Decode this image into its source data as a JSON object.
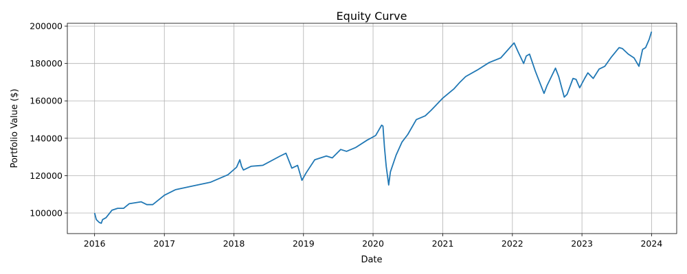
{
  "chart_data": {
    "type": "line",
    "title": "Equity Curve",
    "xlabel": "Date",
    "ylabel": "Portfolio Value ($)",
    "xlim": [
      "2015-08-11",
      "2024-05-12"
    ],
    "ylim": [
      89000,
      201500
    ],
    "x_ticks": [
      "2016",
      "2017",
      "2018",
      "2019",
      "2020",
      "2021",
      "2022",
      "2023",
      "2024"
    ],
    "y_ticks": [
      100000,
      120000,
      140000,
      160000,
      180000,
      200000
    ],
    "y_tick_labels": [
      "100000",
      "120000",
      "140000",
      "160000",
      "180000",
      "200000"
    ],
    "grid": true,
    "color": "#1f77b4",
    "series": [
      {
        "x": [
          "2016-01-01",
          "2016-01-10",
          "2016-01-25",
          "2016-02-05",
          "2016-02-12",
          "2016-03-01",
          "2016-04-01",
          "2016-05-01",
          "2016-06-01",
          "2016-07-01",
          "2016-09-01",
          "2016-10-01",
          "2016-11-01",
          "2017-01-01",
          "2017-03-01",
          "2017-06-01",
          "2017-09-01",
          "2017-12-01",
          "2018-01-15",
          "2018-02-01",
          "2018-02-10",
          "2018-02-20",
          "2018-04-01",
          "2018-06-01",
          "2018-09-01",
          "2018-10-01",
          "2018-11-01",
          "2018-12-01",
          "2018-12-24",
          "2019-01-15",
          "2019-03-01",
          "2019-05-01",
          "2019-06-01",
          "2019-07-15",
          "2019-08-15",
          "2019-10-01",
          "2019-12-01",
          "2020-01-15",
          "2020-02-15",
          "2020-02-22",
          "2020-03-01",
          "2020-03-10",
          "2020-03-23",
          "2020-04-01",
          "2020-05-01",
          "2020-06-01",
          "2020-07-01",
          "2020-08-15",
          "2020-10-01",
          "2020-11-01",
          "2021-01-01",
          "2021-03-01",
          "2021-04-01",
          "2021-05-01",
          "2021-07-01",
          "2021-09-01",
          "2021-11-01",
          "2022-01-01",
          "2022-01-10",
          "2022-02-01",
          "2022-03-01",
          "2022-03-15",
          "2022-04-01",
          "2022-05-01",
          "2022-05-20",
          "2022-06-16",
          "2022-07-01",
          "2022-08-15",
          "2022-09-01",
          "2022-09-30",
          "2022-10-15",
          "2022-11-15",
          "2022-12-01",
          "2022-12-20",
          "2023-01-15",
          "2023-02-01",
          "2023-03-01",
          "2023-04-01",
          "2023-05-01",
          "2023-06-01",
          "2023-07-15",
          "2023-08-01",
          "2023-09-01",
          "2023-10-01",
          "2023-10-27",
          "2023-11-15",
          "2023-12-01",
          "2023-12-20",
          "2024-01-01"
        ],
        "values": [
          100000,
          96500,
          95000,
          94500,
          96500,
          97500,
          101500,
          102500,
          102500,
          105000,
          106000,
          104500,
          104500,
          109500,
          112500,
          114500,
          116500,
          120500,
          124500,
          128500,
          125000,
          123000,
          125000,
          125500,
          130500,
          132000,
          124000,
          125500,
          117500,
          121500,
          128500,
          130500,
          129500,
          134000,
          133000,
          135000,
          139000,
          141500,
          147000,
          146500,
          135000,
          125000,
          115000,
          122000,
          131000,
          138000,
          142000,
          150000,
          152000,
          155000,
          161500,
          166500,
          170000,
          173000,
          176500,
          180500,
          183000,
          190000,
          191000,
          186000,
          180000,
          184000,
          185000,
          176000,
          171000,
          164000,
          168000,
          177500,
          173000,
          162000,
          163500,
          172000,
          171500,
          167000,
          172000,
          175000,
          172000,
          177000,
          178500,
          183000,
          188500,
          188000,
          185000,
          183000,
          178500,
          187500,
          188500,
          193000,
          197000
        ]
      }
    ]
  }
}
